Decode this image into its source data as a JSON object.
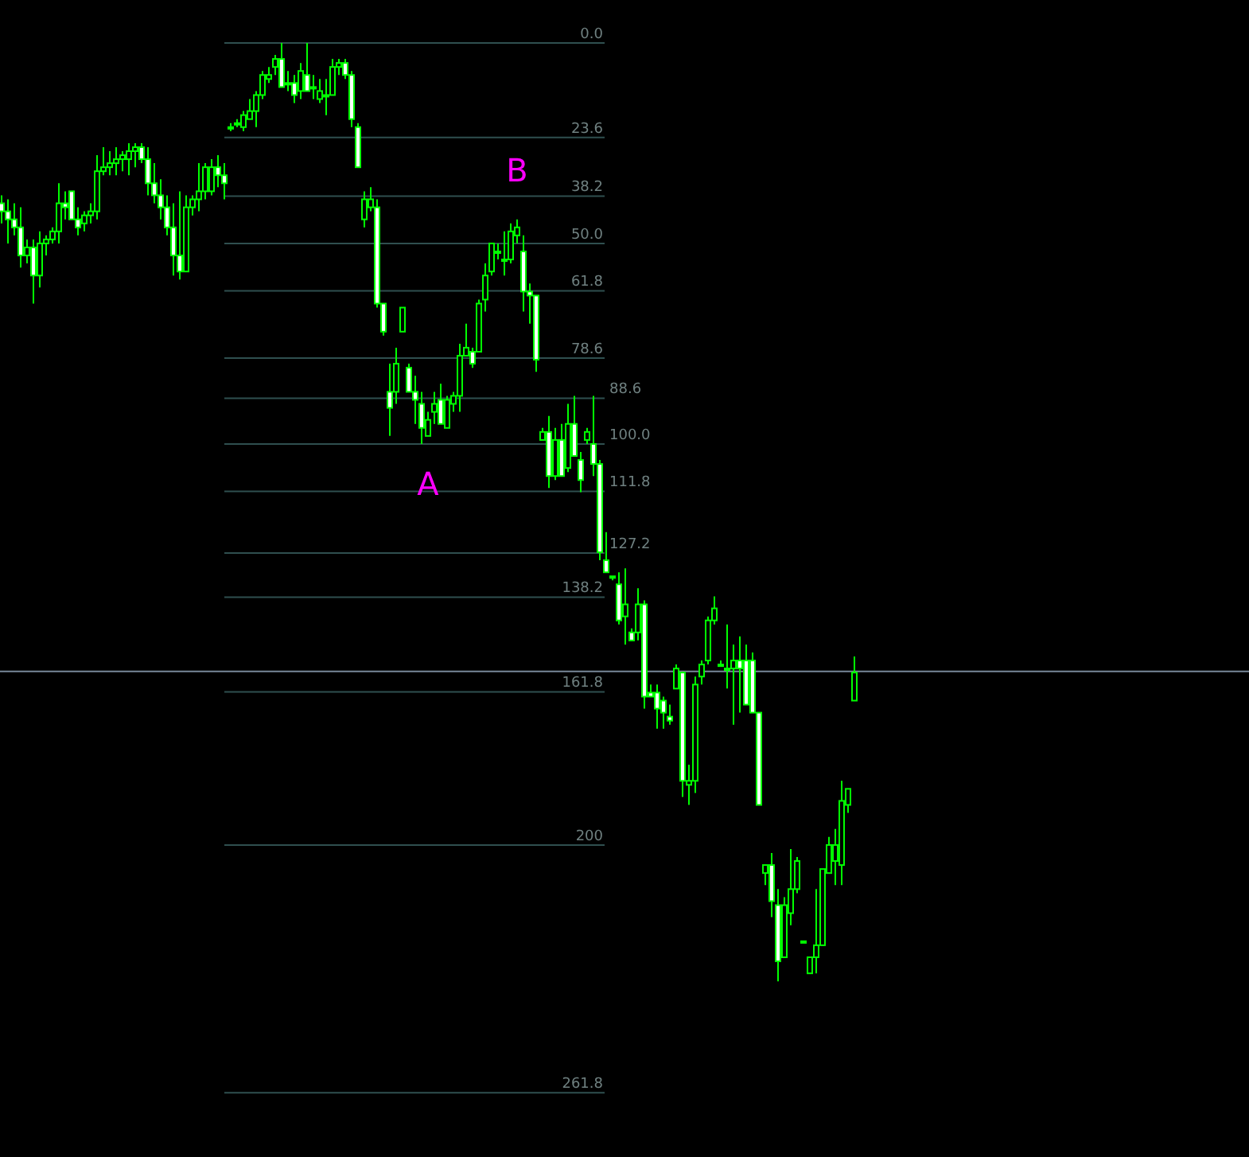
{
  "chart_data": {
    "type": "candlestick",
    "ylim": [
      277.8,
      -10.7
    ],
    "color": "#00ff00",
    "categories": [
      null,
      null,
      null,
      null,
      null,
      null,
      null,
      null,
      null,
      null,
      null,
      null,
      null,
      null,
      null,
      null,
      null,
      null,
      null,
      null,
      null,
      null,
      null,
      null,
      null,
      null,
      null,
      null,
      null,
      null,
      null,
      null,
      null,
      null,
      null,
      null,
      null,
      null,
      null,
      null,
      null,
      null,
      null,
      null,
      null,
      null,
      null,
      null,
      null,
      null,
      null,
      null,
      null,
      null,
      null,
      null,
      null,
      null,
      null,
      null,
      null,
      null,
      null,
      null,
      null,
      null,
      null,
      null,
      null,
      null,
      null,
      null,
      null,
      null,
      null,
      null,
      null,
      null,
      null,
      null,
      null,
      null,
      null,
      null,
      null,
      null,
      null,
      null,
      null,
      null,
      null,
      null,
      null,
      null,
      null,
      null,
      null,
      null,
      null,
      null,
      null,
      null,
      null,
      null,
      null,
      null,
      null,
      null,
      null,
      null,
      null,
      null,
      null,
      null,
      null,
      null,
      null,
      null,
      null,
      null,
      null,
      null,
      null,
      null,
      null,
      null,
      null,
      null,
      null,
      null,
      null,
      null,
      null,
      null,
      null
    ],
    "ohlc": [
      [
        40,
        45,
        38,
        42
      ],
      [
        42,
        50,
        39,
        44
      ],
      [
        44,
        48,
        40,
        46
      ],
      [
        46,
        56,
        41,
        53
      ],
      [
        53,
        55,
        49,
        51
      ],
      [
        51,
        65,
        49,
        58
      ],
      [
        58,
        61,
        47,
        50
      ],
      [
        50,
        53,
        48,
        49
      ],
      [
        49,
        50,
        46,
        47
      ],
      [
        47,
        50,
        35,
        40
      ],
      [
        40,
        44,
        37,
        41
      ],
      [
        37,
        44,
        37,
        44
      ],
      [
        44,
        48,
        41,
        46
      ],
      [
        45,
        47,
        42,
        43
      ],
      [
        43,
        45,
        40,
        42
      ],
      [
        42,
        44,
        28,
        32
      ],
      [
        32,
        33,
        26,
        31
      ],
      [
        31,
        33,
        27,
        30
      ],
      [
        30,
        33,
        26,
        29
      ],
      [
        29,
        32,
        27,
        28
      ],
      [
        29,
        33,
        25,
        27
      ],
      [
        27,
        31,
        25,
        26
      ],
      [
        26,
        30,
        25,
        29
      ],
      [
        29,
        38,
        26,
        35
      ],
      [
        35,
        40,
        30,
        38
      ],
      [
        38,
        44,
        34,
        41
      ],
      [
        41,
        48,
        38,
        46
      ],
      [
        46,
        58,
        40,
        53
      ],
      [
        53,
        59,
        37,
        57
      ],
      [
        57,
        57,
        38,
        41
      ],
      [
        41,
        43,
        38,
        39
      ],
      [
        39,
        42,
        30,
        37
      ],
      [
        37,
        39,
        30,
        31
      ],
      [
        37,
        38,
        29,
        31
      ],
      [
        31,
        36,
        28,
        33
      ],
      [
        33,
        39,
        30,
        35
      ],
      [
        21,
        22,
        20,
        21
      ],
      [
        20,
        21,
        19,
        20
      ],
      [
        21,
        22,
        17,
        18
      ],
      [
        19,
        19,
        14,
        17
      ],
      [
        17,
        21,
        12,
        13
      ],
      [
        13,
        14,
        7,
        8
      ],
      [
        9,
        10,
        6,
        8
      ],
      [
        6,
        8,
        3,
        4
      ],
      [
        4,
        11,
        0,
        11
      ],
      [
        10,
        12,
        7,
        10
      ],
      [
        10,
        15,
        8,
        13
      ],
      [
        12,
        14,
        5,
        7
      ],
      [
        8,
        12,
        0,
        12
      ],
      [
        11,
        14,
        8,
        11
      ],
      [
        14,
        15,
        9,
        12
      ],
      [
        13,
        18,
        9,
        13
      ],
      [
        13,
        13,
        4,
        6
      ],
      [
        6,
        8,
        4,
        5
      ],
      [
        5,
        9,
        4,
        8
      ],
      [
        8,
        21,
        7,
        19
      ],
      [
        21,
        31,
        20,
        31
      ],
      [
        44,
        46,
        37,
        39
      ],
      [
        41,
        42,
        36,
        39
      ],
      [
        41,
        66,
        39,
        65
      ],
      [
        65,
        73,
        65,
        72
      ],
      [
        87,
        98,
        80,
        91
      ],
      [
        87,
        90,
        76,
        80
      ],
      [
        72,
        72,
        66,
        66
      ],
      [
        81,
        87,
        80,
        87
      ],
      [
        87,
        95,
        83,
        89
      ],
      [
        90,
        100,
        87,
        96
      ],
      [
        98,
        98,
        92,
        94
      ],
      [
        92,
        95,
        87,
        90
      ],
      [
        89,
        95,
        85,
        95
      ],
      [
        96,
        96,
        88,
        89
      ],
      [
        90,
        92,
        87,
        88
      ],
      [
        88,
        92,
        75,
        78
      ],
      [
        78,
        78,
        70,
        76
      ],
      [
        77,
        81,
        76,
        80
      ],
      [
        77,
        77,
        64,
        65
      ],
      [
        64,
        67,
        55,
        58
      ],
      [
        57,
        58,
        50,
        50
      ],
      [
        52,
        54,
        50,
        52
      ],
      [
        54,
        58,
        47,
        54
      ],
      [
        54,
        55,
        45,
        47
      ],
      [
        48,
        50,
        44,
        46
      ],
      [
        52,
        67,
        48,
        62
      ],
      [
        62,
        70,
        60,
        63
      ],
      [
        63,
        82,
        63,
        79
      ],
      [
        99,
        99,
        96,
        97
      ],
      [
        97,
        111,
        93,
        108
      ],
      [
        108,
        109,
        96,
        99
      ],
      [
        99,
        108,
        95,
        108
      ],
      [
        106,
        107,
        90,
        95
      ],
      [
        95,
        103,
        88,
        103
      ],
      [
        104,
        112,
        102,
        109
      ],
      [
        99,
        100,
        96,
        97
      ],
      [
        100,
        108,
        88,
        105
      ],
      [
        105,
        129,
        104,
        127
      ],
      [
        129,
        132,
        122,
        132
      ],
      [
        133,
        134,
        133,
        133
      ],
      [
        135,
        145,
        132,
        144
      ],
      [
        143,
        150,
        131,
        140
      ],
      [
        147,
        149,
        146,
        149
      ],
      [
        147,
        149,
        136,
        140
      ],
      [
        140,
        166,
        139,
        163
      ],
      [
        162,
        163,
        160,
        163
      ],
      [
        162,
        171,
        160,
        166
      ],
      [
        164,
        171,
        163,
        167
      ],
      [
        168,
        170,
        165,
        169
      ],
      [
        161,
        161,
        155,
        156
      ],
      [
        157,
        188,
        157,
        184
      ],
      [
        185,
        190,
        180,
        184
      ],
      [
        184,
        187,
        158,
        160
      ],
      [
        158,
        160,
        154,
        155
      ],
      [
        154,
        155,
        143,
        144
      ],
      [
        144,
        145,
        138,
        141
      ],
      [
        155,
        155,
        154,
        155
      ],
      [
        156,
        161,
        145,
        156
      ],
      [
        156,
        170,
        150,
        154
      ],
      [
        154,
        167,
        148,
        156
      ],
      [
        154,
        165,
        150,
        165
      ],
      [
        154,
        167,
        152,
        167
      ],
      [
        167,
        190,
        167,
        190
      ],
      [
        207,
        210,
        205,
        205
      ],
      [
        205,
        218,
        202,
        214
      ],
      [
        215,
        234,
        211,
        229
      ],
      [
        228,
        228,
        213,
        215
      ],
      [
        217,
        220,
        201,
        211
      ],
      [
        211,
        212,
        203,
        204
      ],
      [
        224,
        224,
        224,
        224
      ],
      [
        232,
        232,
        228,
        228
      ],
      [
        228,
        232,
        211,
        225
      ],
      [
        225,
        225,
        206,
        206
      ],
      [
        207,
        207,
        198,
        200
      ],
      [
        204,
        210,
        196,
        200
      ],
      [
        205,
        210,
        184,
        189
      ],
      [
        190,
        192,
        186,
        186
      ],
      [
        164,
        164,
        153,
        157
      ]
    ],
    "ref_lines": [
      {
        "axis": "y",
        "value": 0,
        "label": "0.0",
        "color": "#2f4f4f"
      },
      {
        "axis": "y",
        "value": 23.6,
        "label": "23.6",
        "color": "#2f4f4f"
      },
      {
        "axis": "y",
        "value": 38.2,
        "label": "38.2",
        "color": "#2f4f4f"
      },
      {
        "axis": "y",
        "value": 50,
        "label": "50.0",
        "color": "#2f4f4f"
      },
      {
        "axis": "y",
        "value": 61.8,
        "label": "61.8",
        "color": "#2f4f4f"
      },
      {
        "axis": "y",
        "value": 78.6,
        "label": "78.6",
        "color": "#2f4f4f"
      },
      {
        "axis": "y",
        "value": 88.6,
        "label": "88.6",
        "color": "#2f4f4f"
      },
      {
        "axis": "y",
        "value": 100,
        "label": "100.0",
        "color": "#2f4f4f"
      },
      {
        "axis": "y",
        "value": 111.8,
        "label": "111.8",
        "color": "#2f4f4f"
      },
      {
        "axis": "y",
        "value": 127.2,
        "label": "127.2",
        "color": "#2f4f4f"
      },
      {
        "axis": "y",
        "value": 138.2,
        "label": "138.2",
        "color": "#2f4f4f"
      },
      {
        "axis": "y",
        "value": 161.8,
        "label": "161.8",
        "color": "#2f4f4f"
      },
      {
        "axis": "y",
        "value": 200,
        "label": "200",
        "color": "#2f4f4f"
      },
      {
        "axis": "y",
        "value": 261.8,
        "label": "261.8",
        "color": "#2f4f4f"
      },
      {
        "axis": "y",
        "value": 156.7,
        "color": "#778899"
      }
    ],
    "annotations": [
      "B",
      "A"
    ]
  }
}
